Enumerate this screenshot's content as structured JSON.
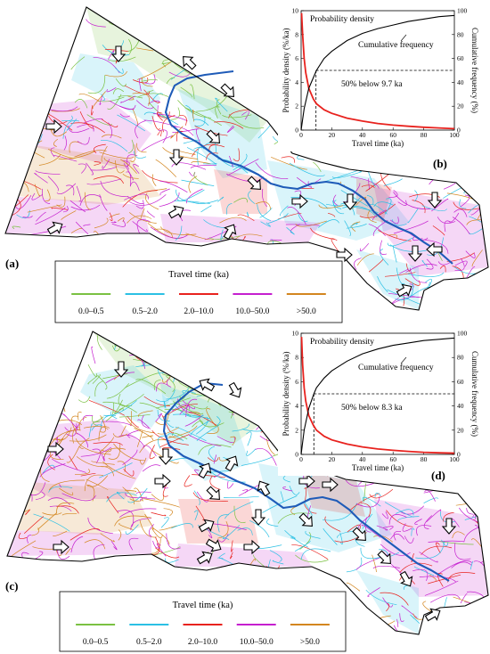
{
  "panels": [
    {
      "map_label": "(a)",
      "inset_label": "(b)",
      "annotation": "50% below 9.7 ka",
      "median_ka": 9.7
    },
    {
      "map_label": "(c)",
      "inset_label": "(d)",
      "annotation": "50% below 8.3 ka",
      "median_ka": 8.3
    }
  ],
  "legend": {
    "title": "Travel time (ka)",
    "items": [
      {
        "label": "0.0–0.5",
        "color": "#7ac142"
      },
      {
        "label": "0.5–2.0",
        "color": "#2bc0e4"
      },
      {
        "label": "2.0–10.0",
        "color": "#e8221e"
      },
      {
        "label": "10.0–50.0",
        "color": "#c51fcf"
      },
      {
        "label": ">50.0",
        "color": "#d3861f"
      }
    ]
  },
  "chart_data": [
    {
      "type": "line",
      "xlabel": "Travel time (ka)",
      "ylabel": "Probability density (%/ka)",
      "ylabel_right": "Cumulative frequency (%)",
      "xlim": [
        0,
        100
      ],
      "ylim": [
        0,
        10
      ],
      "ylim_right": [
        0,
        100
      ],
      "x_ticks": [
        "0",
        "20",
        "40",
        "60",
        "80",
        "100"
      ],
      "y_ticks": [
        "0",
        "2",
        "4",
        "6",
        "8",
        "10"
      ],
      "y_ticks_right": [
        "0",
        "20",
        "40",
        "60",
        "80",
        "100"
      ],
      "series": [
        {
          "name": "Probability density",
          "color": "#e8221e",
          "axis": "left",
          "x": [
            0.3,
            1,
            2,
            3,
            5,
            8,
            10,
            15,
            20,
            30,
            40,
            50,
            60,
            70,
            80,
            90,
            100
          ],
          "y": [
            9.8,
            8.0,
            6.0,
            4.8,
            3.5,
            2.6,
            2.2,
            1.7,
            1.4,
            1.0,
            0.75,
            0.55,
            0.42,
            0.32,
            0.24,
            0.18,
            0.12
          ]
        },
        {
          "name": "Cumulative frequency",
          "color": "#000000",
          "axis": "right",
          "x": [
            0,
            2,
            5,
            10,
            15,
            20,
            30,
            40,
            50,
            60,
            70,
            80,
            90,
            100
          ],
          "y": [
            0,
            18,
            35,
            50,
            60,
            66,
            75,
            81,
            85,
            88,
            91,
            93,
            95,
            96
          ]
        }
      ],
      "reference": {
        "x": 9.7,
        "y_right": 50
      }
    },
    {
      "type": "line",
      "xlabel": "Travel time (ka)",
      "ylabel": "Probability density (%/ka)",
      "ylabel_right": "Cumulative frequency (%)",
      "xlim": [
        0,
        100
      ],
      "ylim": [
        0,
        10
      ],
      "ylim_right": [
        0,
        100
      ],
      "x_ticks": [
        "0",
        "20",
        "40",
        "60",
        "80",
        "100"
      ],
      "y_ticks": [
        "0",
        "2",
        "4",
        "6",
        "8",
        "10"
      ],
      "y_ticks_right": [
        "0",
        "20",
        "40",
        "60",
        "80",
        "100"
      ],
      "series": [
        {
          "name": "Probability density",
          "color": "#e8221e",
          "axis": "left",
          "x": [
            0.3,
            1,
            2,
            3,
            5,
            8,
            10,
            15,
            20,
            30,
            40,
            50,
            60,
            70,
            80,
            90,
            100
          ],
          "y": [
            9.7,
            7.4,
            5.5,
            4.4,
            3.2,
            2.4,
            2.0,
            1.5,
            1.2,
            0.85,
            0.62,
            0.45,
            0.34,
            0.25,
            0.18,
            0.13,
            0.1
          ]
        },
        {
          "name": "Cumulative frequency",
          "color": "#000000",
          "axis": "right",
          "x": [
            0,
            2,
            5,
            8.3,
            10,
            15,
            20,
            30,
            40,
            50,
            60,
            70,
            80,
            90,
            100
          ],
          "y": [
            0,
            20,
            38,
            50,
            55,
            63,
            69,
            77,
            83,
            87,
            90,
            92,
            94,
            95,
            96
          ]
        }
      ],
      "reference": {
        "x": 8.3,
        "y_right": 50
      }
    }
  ]
}
